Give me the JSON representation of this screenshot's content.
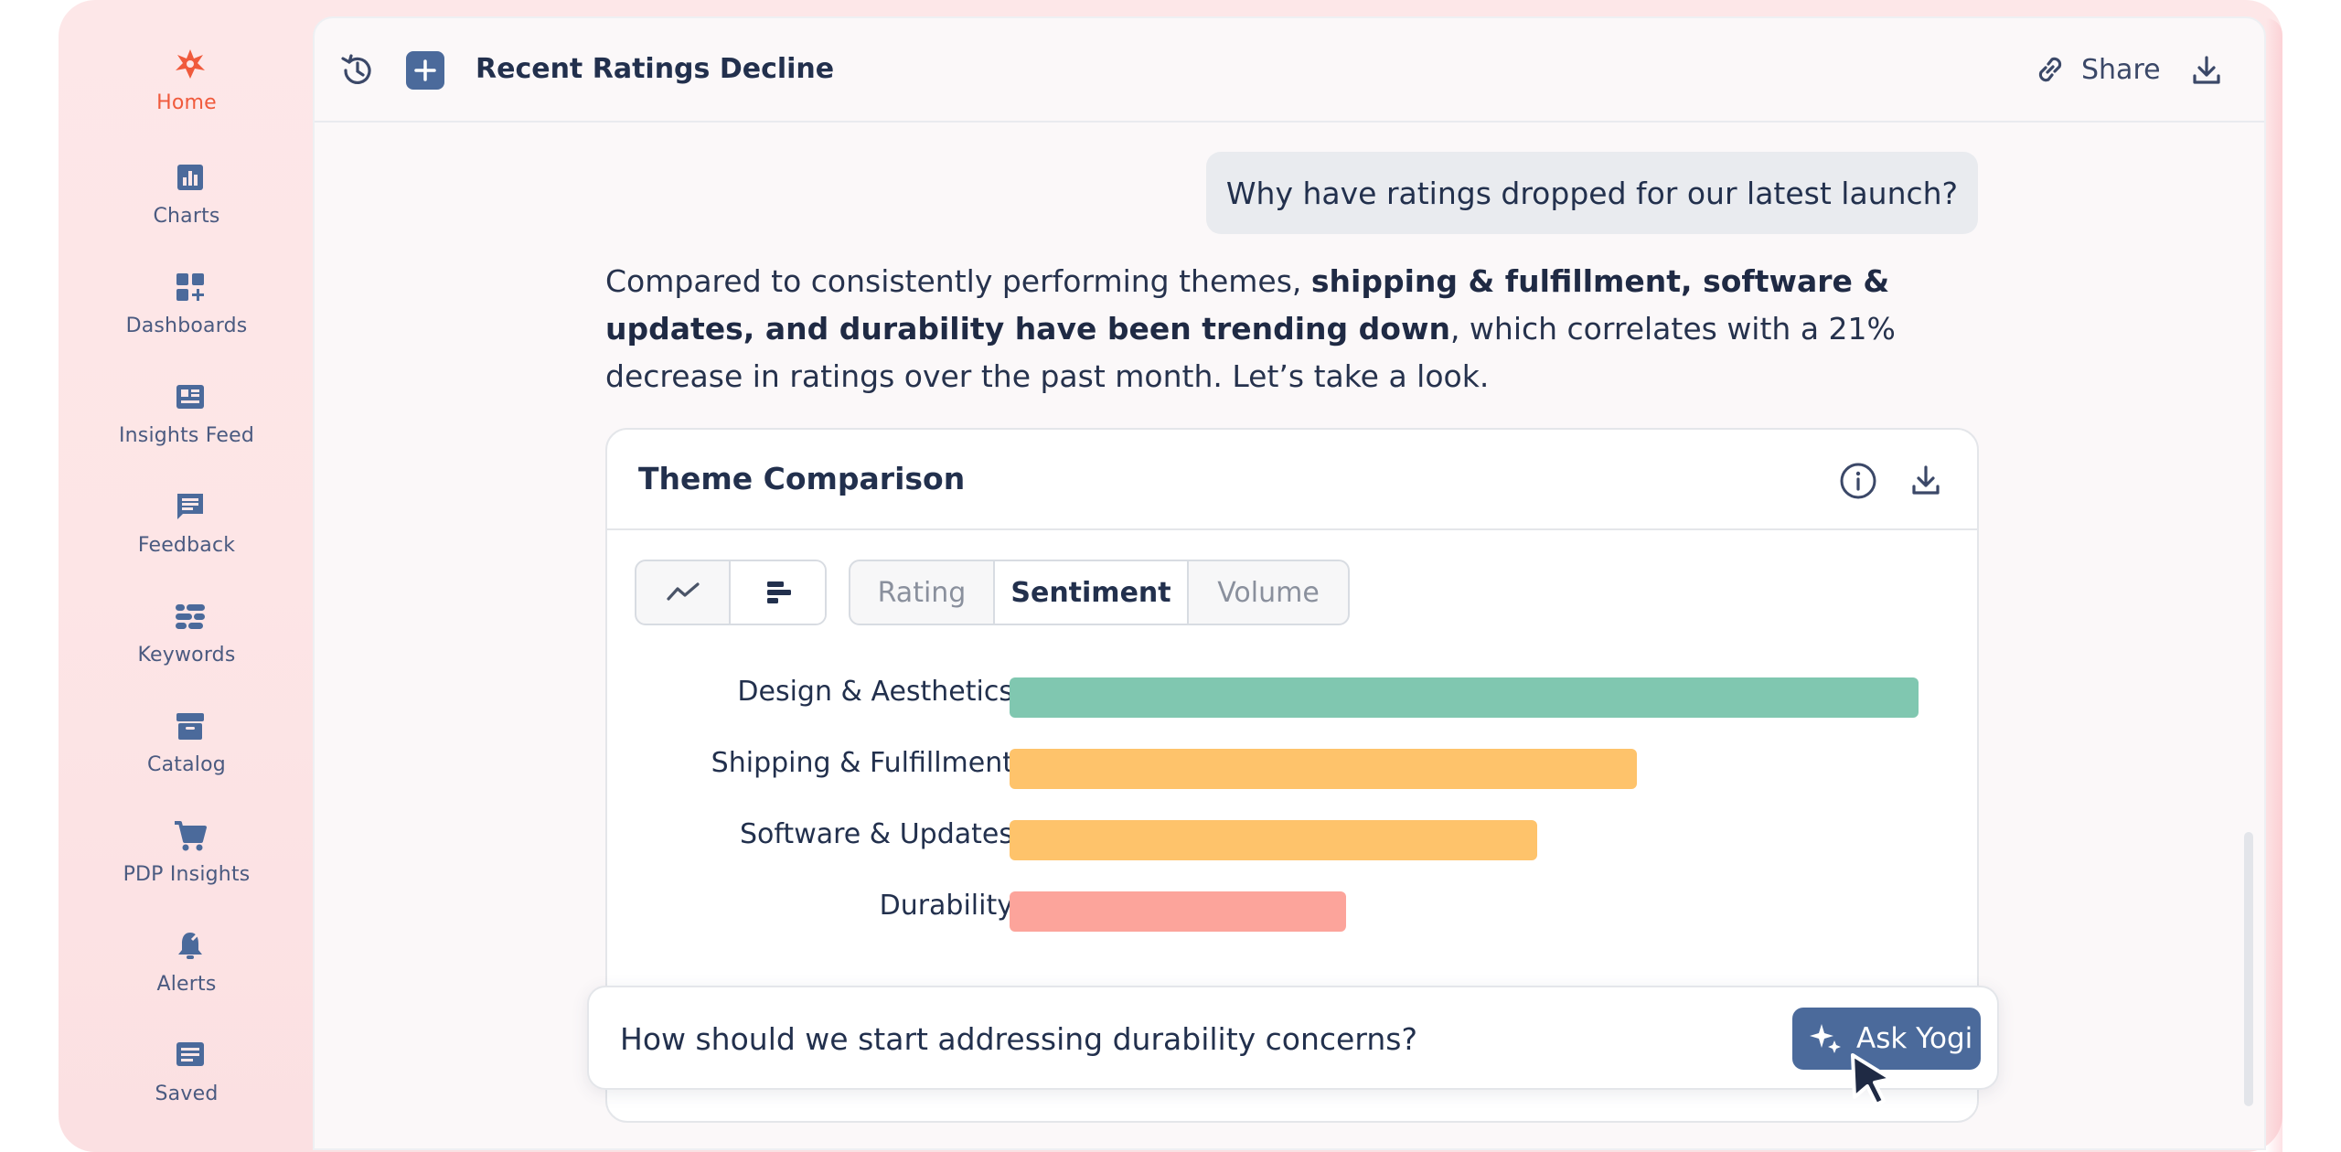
{
  "app": {
    "accent": "#f05a3c",
    "primary": "#4b6a9b"
  },
  "sidebar": {
    "items": [
      {
        "label": "Home",
        "icon": "logo-icon",
        "active": true
      },
      {
        "label": "Charts",
        "icon": "bar-chart-icon"
      },
      {
        "label": "Dashboards",
        "icon": "dashboard-add-icon"
      },
      {
        "label": "Insights Feed",
        "icon": "news-feed-icon"
      },
      {
        "label": "Feedback",
        "icon": "comment-icon"
      },
      {
        "label": "Keywords",
        "icon": "keywords-icon"
      },
      {
        "label": "Catalog",
        "icon": "archive-box-icon"
      },
      {
        "label": "PDP Insights",
        "icon": "cart-icon"
      },
      {
        "label": "Alerts",
        "icon": "alert-bell-icon"
      },
      {
        "label": "Saved",
        "icon": "saved-icon"
      }
    ]
  },
  "topbar": {
    "title": "Recent Ratings Decline",
    "share_label": "Share"
  },
  "chat": {
    "user_message": "Why have ratings dropped for our latest launch?",
    "answer": {
      "part1": "Compared to consistently performing themes, ",
      "bold": "shipping & fulfillment, software & updates, and durability have been trending down",
      "part2": ", which correlates with a 21% decrease in ratings over the past month. Let’s take a look."
    }
  },
  "card": {
    "title": "Theme Comparison",
    "view_toggle": [
      "line-chart-icon",
      "horizontal-bar-icon"
    ],
    "metric_tabs": [
      "Rating",
      "Sentiment",
      "Volume"
    ],
    "selected_metric": "Sentiment"
  },
  "chart_data": {
    "type": "bar",
    "orientation": "horizontal",
    "categories": [
      "Design & Aesthetics",
      "Shipping & Fulfillment",
      "Software & Updates",
      "Durability"
    ],
    "values": [
      100,
      69,
      58,
      37
    ],
    "colors": [
      "#80c7b0",
      "#fec36b",
      "#fec36b",
      "#fca49b"
    ],
    "xlim": [
      0,
      100
    ],
    "grid": false,
    "legend": "none",
    "title": "",
    "xlabel": "",
    "ylabel": ""
  },
  "ask": {
    "input_value": "How should we start addressing durability concerns?",
    "button_label": "Ask Yogi"
  }
}
